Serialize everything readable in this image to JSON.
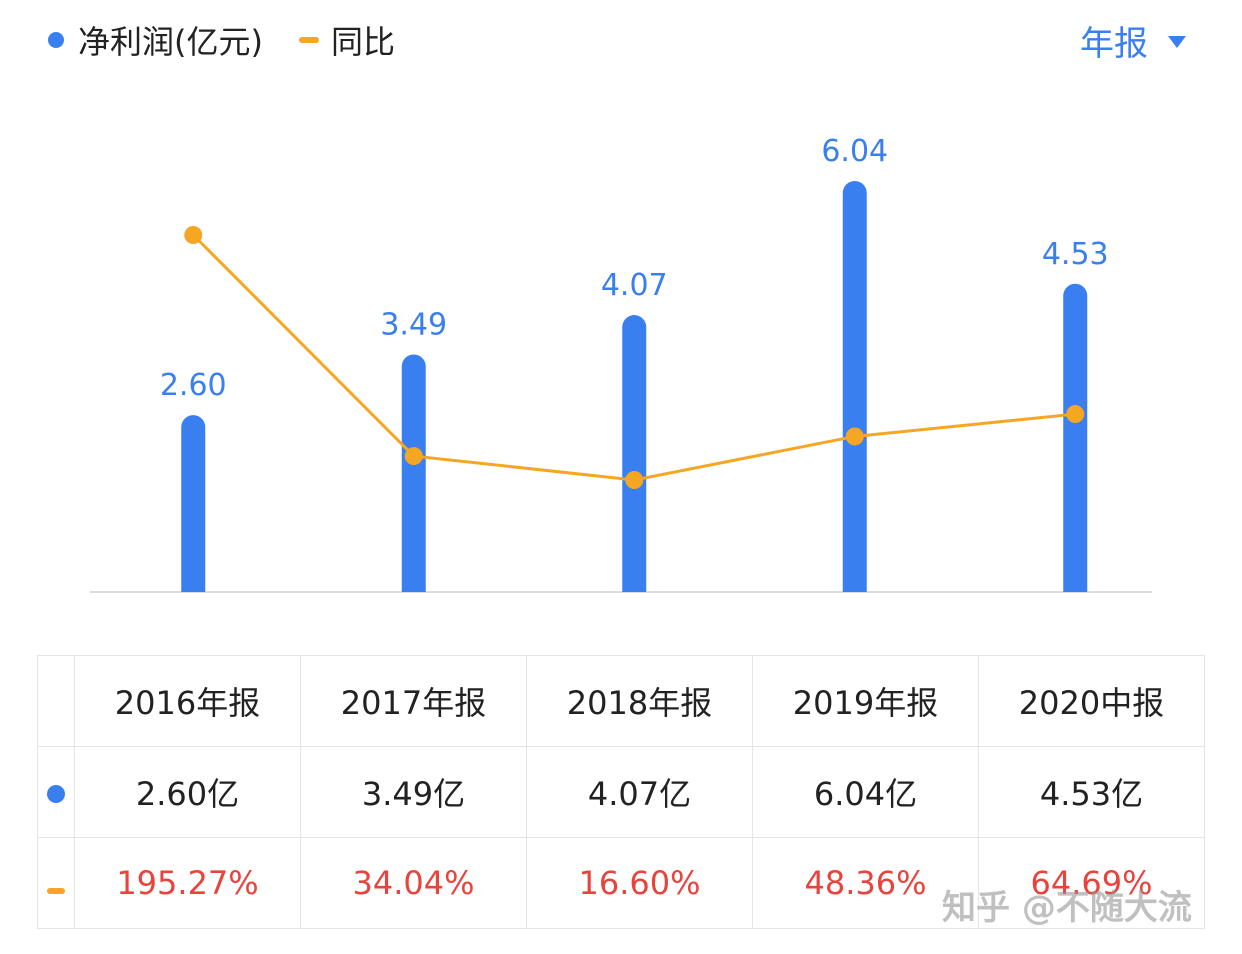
{
  "legend": {
    "profit_label": "净利润(亿元)",
    "yoy_label": "同比"
  },
  "period_selector": {
    "label": "年报"
  },
  "colors": {
    "bar": "#3a7ff0",
    "line": "#f5a623",
    "negative_text": "#e8433c"
  },
  "chart_data": {
    "type": "bar",
    "categories": [
      "2016年报",
      "2017年报",
      "2018年报",
      "2019年报",
      "2020中报"
    ],
    "series": [
      {
        "name": "净利润(亿元)",
        "type": "bar",
        "values": [
          2.6,
          3.49,
          4.07,
          6.04,
          4.53
        ],
        "data_labels": [
          "2.60",
          "3.49",
          "4.07",
          "6.04",
          "4.53"
        ]
      },
      {
        "name": "同比",
        "type": "line",
        "values": [
          195.27,
          34.04,
          16.6,
          48.36,
          64.69
        ]
      }
    ],
    "ylim_bar": [
      0,
      6.04
    ],
    "grid": false,
    "legend_position": "top-left"
  },
  "table": {
    "headers": [
      "2016年报",
      "2017年报",
      "2018年报",
      "2019年报",
      "2020中报"
    ],
    "profit_row": [
      "2.60亿",
      "3.49亿",
      "4.07亿",
      "6.04亿",
      "4.53亿"
    ],
    "yoy_row": [
      "195.27%",
      "34.04%",
      "16.60%",
      "48.36%",
      "64.69%"
    ]
  },
  "watermark": "知乎 @不随大流"
}
